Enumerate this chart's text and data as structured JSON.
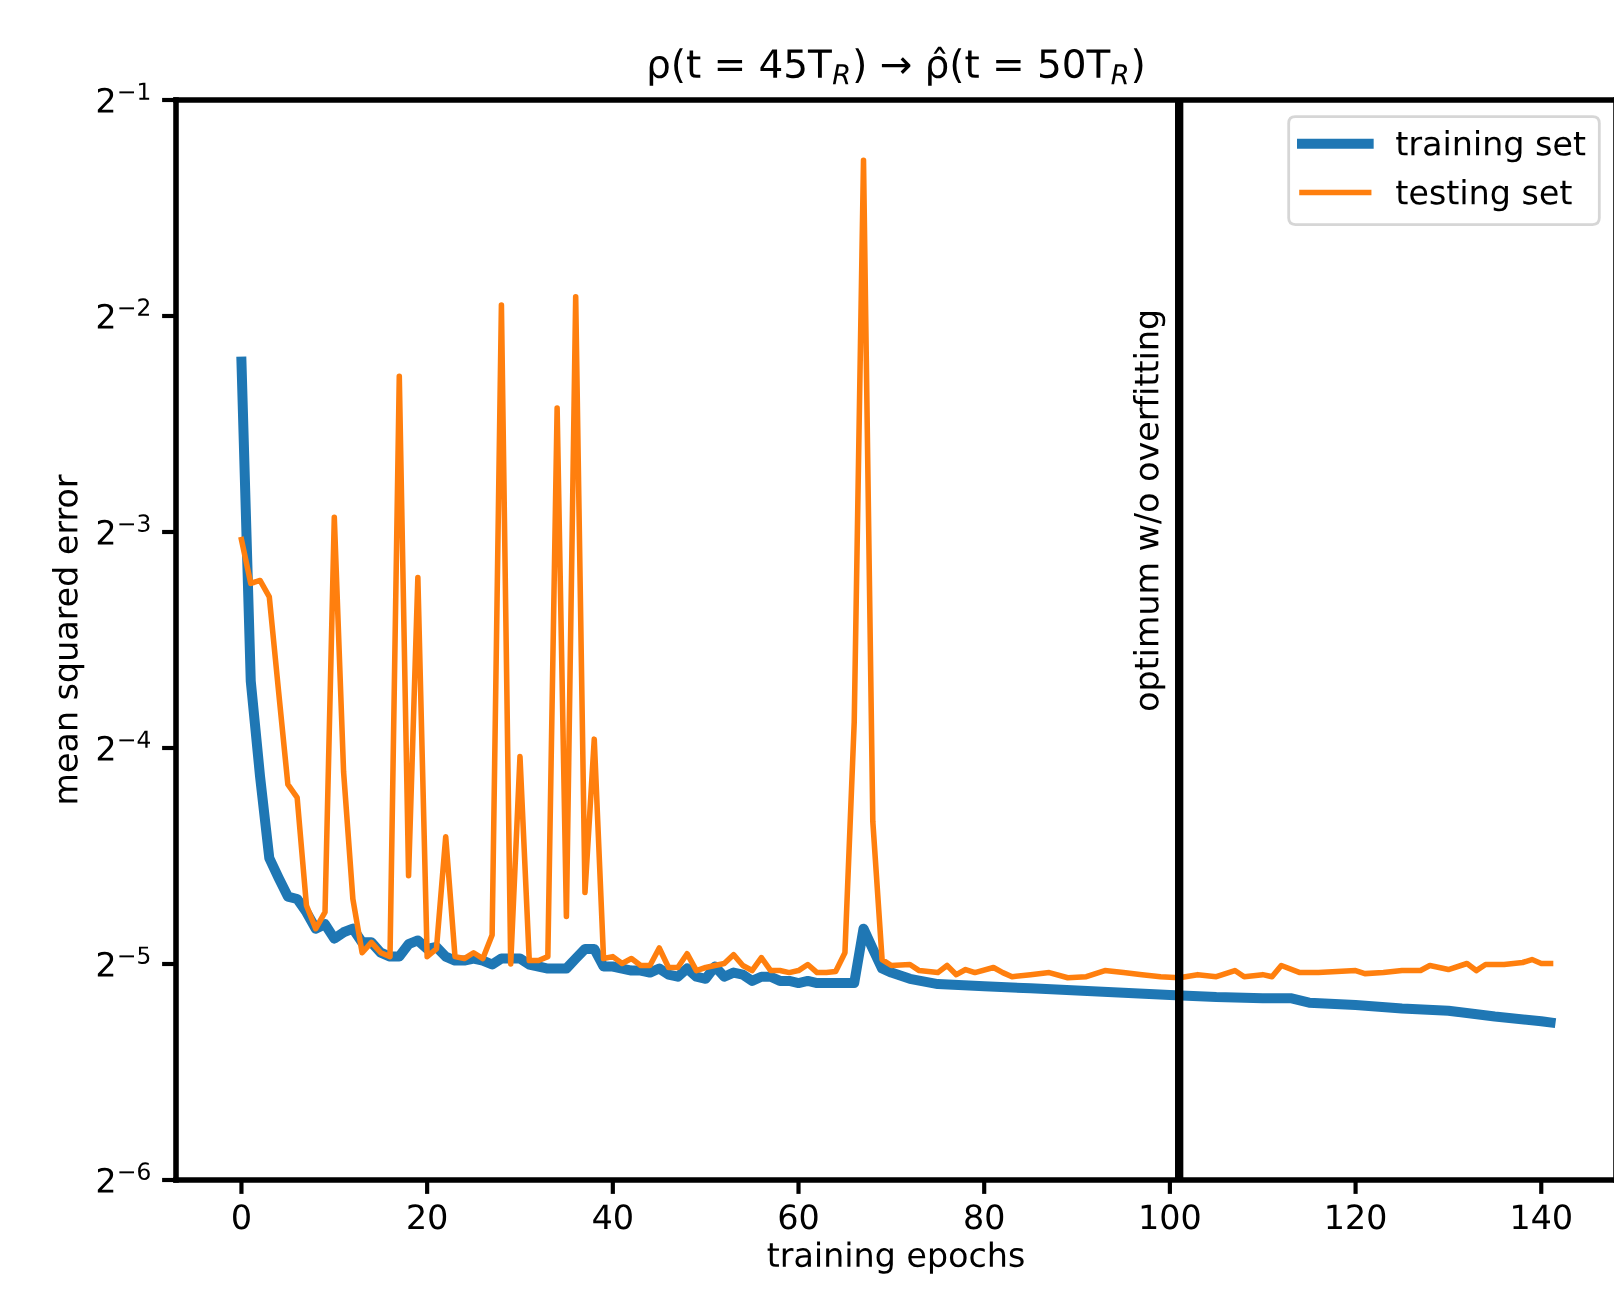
{
  "chart_data": {
    "type": "line",
    "title": "ρ(t = 45T$_{R}$) → ρ̂(t = 50T$_{R}$)",
    "xlabel": "training epochs",
    "ylabel": "mean squared error",
    "log": "y",
    "xlim": [
      -7.05,
      148.05
    ],
    "xticks": [
      0,
      20,
      40,
      60,
      80,
      100,
      120,
      140
    ],
    "ylim": [
      0.015625,
      0.5
    ],
    "yticks": [
      {
        "value": 0.015625,
        "label": "2$^{−6}$"
      },
      {
        "value": 0.03125,
        "label": "2$^{−5}$"
      },
      {
        "value": 0.0625,
        "label": "2$^{−4}$"
      },
      {
        "value": 0.125,
        "label": "2$^{−3}$"
      },
      {
        "value": 0.25,
        "label": "2$^{−2}$"
      },
      {
        "value": 0.5,
        "label": "2$^{−1}$"
      }
    ],
    "grid": false,
    "legend": "top right",
    "marker": "none",
    "line_style": "solid",
    "ref_lines": [
      {
        "axis": "x",
        "value": 101,
        "label": "optimum w/o overfitting",
        "color": "#000000"
      }
    ],
    "series": [
      {
        "name": "training set",
        "color": "#1f77b4",
        "x": [
          0,
          1,
          2,
          3,
          4,
          5,
          6,
          7,
          8,
          9,
          10,
          11,
          12,
          13,
          14,
          15,
          16,
          17,
          18,
          19,
          20,
          21,
          22,
          23,
          24,
          25,
          26,
          27,
          28,
          29,
          30,
          31,
          32,
          33,
          34,
          35,
          36,
          37,
          38,
          39,
          40,
          41,
          42,
          43,
          44,
          45,
          46,
          47,
          48,
          49,
          50,
          51,
          52,
          53,
          54,
          55,
          56,
          57,
          58,
          59,
          60,
          61,
          62,
          63,
          64,
          65,
          66,
          67,
          68,
          69,
          70,
          72,
          75,
          80,
          85,
          90,
          95,
          100,
          105,
          110,
          113,
          115,
          120,
          125,
          130,
          135,
          140,
          141
        ],
        "values": [
          0.216,
          0.0775,
          0.0571,
          0.0439,
          0.0412,
          0.0388,
          0.0385,
          0.0369,
          0.035,
          0.0355,
          0.0339,
          0.0346,
          0.035,
          0.0335,
          0.0335,
          0.0324,
          0.032,
          0.032,
          0.0333,
          0.0337,
          0.0328,
          0.033,
          0.032,
          0.0316,
          0.0316,
          0.0318,
          0.0316,
          0.0312,
          0.0318,
          0.0318,
          0.0318,
          0.0312,
          0.031,
          0.0308,
          0.0308,
          0.0308,
          0.0318,
          0.0328,
          0.0328,
          0.031,
          0.031,
          0.0308,
          0.0306,
          0.0306,
          0.0304,
          0.0308,
          0.0302,
          0.03,
          0.0308,
          0.03,
          0.0298,
          0.031,
          0.03,
          0.0304,
          0.0302,
          0.0296,
          0.03,
          0.03,
          0.0296,
          0.0296,
          0.0294,
          0.0296,
          0.0294,
          0.0294,
          0.0294,
          0.0294,
          0.0294,
          0.035,
          0.0328,
          0.0308,
          0.0304,
          0.0298,
          0.0293,
          0.0291,
          0.0289,
          0.0287,
          0.0285,
          0.0283,
          0.0281,
          0.028,
          0.028,
          0.0276,
          0.0274,
          0.0271,
          0.0269,
          0.0264,
          0.026,
          0.0259
        ]
      },
      {
        "name": "testing set",
        "color": "#ff7f0e",
        "x": [
          0,
          1,
          2,
          3,
          4,
          5,
          6,
          7,
          8,
          9,
          10,
          11,
          12,
          13,
          14,
          15,
          16,
          17,
          18,
          19,
          20,
          21,
          22,
          23,
          24,
          25,
          26,
          27,
          28,
          29,
          30,
          31,
          32,
          33,
          34,
          35,
          36,
          37,
          38,
          39,
          40,
          41,
          42,
          43,
          44,
          45,
          46,
          47,
          48,
          49,
          50,
          51,
          52,
          53,
          54,
          55,
          56,
          57,
          58,
          59,
          60,
          61,
          62,
          63,
          64,
          65,
          66,
          67,
          68,
          69,
          70,
          72,
          73,
          75,
          76,
          77,
          78,
          79,
          81,
          82,
          83,
          85,
          87,
          89,
          91,
          93,
          95,
          97,
          99,
          101,
          103,
          105,
          107,
          108,
          110,
          111,
          112,
          114,
          116,
          118,
          120,
          121,
          123,
          125,
          127,
          128,
          130,
          132,
          133,
          134,
          136,
          138,
          139,
          140,
          141
        ],
        "values": [
          0.122,
          0.106,
          0.107,
          0.1015,
          0.0749,
          0.0556,
          0.0533,
          0.0377,
          0.035,
          0.0369,
          0.131,
          0.0579,
          0.0385,
          0.0324,
          0.0335,
          0.0324,
          0.032,
          0.206,
          0.0415,
          0.108,
          0.032,
          0.0328,
          0.047,
          0.032,
          0.0318,
          0.0324,
          0.0318,
          0.0343,
          0.259,
          0.03125,
          0.0608,
          0.0316,
          0.0316,
          0.032,
          0.186,
          0.0364,
          0.266,
          0.0393,
          0.0643,
          0.0318,
          0.032,
          0.0313,
          0.0318,
          0.0311,
          0.0311,
          0.0329,
          0.0309,
          0.0309,
          0.0323,
          0.0306,
          0.0309,
          0.0311,
          0.0313,
          0.0322,
          0.0311,
          0.0306,
          0.0319,
          0.0306,
          0.0306,
          0.0304,
          0.0306,
          0.0312,
          0.0304,
          0.0304,
          0.0305,
          0.0324,
          0.0679,
          0.412,
          0.0494,
          0.0317,
          0.0311,
          0.0312,
          0.0306,
          0.0304,
          0.0311,
          0.0302,
          0.0307,
          0.0304,
          0.0309,
          0.0304,
          0.03,
          0.0302,
          0.0304,
          0.0299,
          0.03,
          0.0306,
          0.0304,
          0.0302,
          0.03,
          0.0299,
          0.0302,
          0.03,
          0.0306,
          0.03,
          0.0302,
          0.03,
          0.0311,
          0.0304,
          0.0304,
          0.0305,
          0.0306,
          0.0303,
          0.0304,
          0.0306,
          0.0306,
          0.0311,
          0.0307,
          0.0313,
          0.0306,
          0.0312,
          0.0312,
          0.0314,
          0.0317,
          0.0313,
          0.0313
        ]
      }
    ]
  }
}
